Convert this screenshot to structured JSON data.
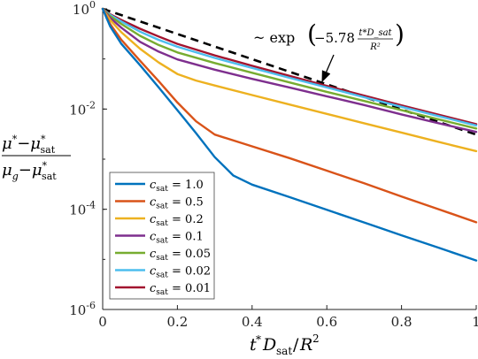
{
  "chart_data": {
    "type": "line",
    "title": "",
    "xlabel": "t*D_sat / R^2",
    "ylabel": "(μ* − μ*_sat) / (μ_g − μ*_sat)",
    "xlim": [
      0,
      1
    ],
    "ylim": [
      1e-06,
      1
    ],
    "y_scale": "log",
    "x_ticks": [
      "0",
      "0.2",
      "0.4",
      "0.6",
      "0.8",
      "1"
    ],
    "x_tick_values": [
      0,
      0.2,
      0.4,
      0.6,
      0.8,
      1
    ],
    "y_ticks": [
      {
        "value": 1,
        "base": "10",
        "exp": "0"
      },
      {
        "value": 0.01,
        "base": "10",
        "exp": "-2"
      },
      {
        "value": 0.0001,
        "base": "10",
        "exp": "-4"
      },
      {
        "value": 1e-06,
        "base": "10",
        "exp": "-6"
      }
    ],
    "grid": false,
    "legend_position": "bottom-left",
    "series": [
      {
        "name": "c_sat = 1.0",
        "legend_text": "= 1.0",
        "color": "#0072BD",
        "x": [
          0,
          0.02,
          0.05,
          0.1,
          0.15,
          0.2,
          0.25,
          0.3,
          0.35,
          0.4,
          0.5,
          0.6,
          0.7,
          0.8,
          0.9,
          1.0
        ],
        "y": [
          1,
          0.45,
          0.2,
          0.075,
          0.027,
          0.0095,
          0.0033,
          0.0011,
          0.00047,
          0.00031,
          0.000175,
          9.75e-05,
          5.45e-05,
          3.03e-05,
          1.7e-05,
          9.5e-06
        ]
      },
      {
        "name": "c_sat = 0.5",
        "legend_text": "= 0.5",
        "color": "#D95319",
        "x": [
          0,
          0.02,
          0.05,
          0.1,
          0.15,
          0.2,
          0.25,
          0.3,
          0.4,
          0.5,
          0.6,
          0.7,
          0.8,
          0.9,
          1.0
        ],
        "y": [
          1,
          0.5,
          0.24,
          0.092,
          0.036,
          0.0135,
          0.0057,
          0.0031,
          0.0018,
          0.00105,
          0.00059,
          0.00033,
          0.00018,
          0.0001,
          5.5e-05
        ]
      },
      {
        "name": "c_sat = 0.2",
        "legend_text": "= 0.2",
        "color": "#EDB120",
        "x": [
          0,
          0.02,
          0.05,
          0.1,
          0.15,
          0.2,
          0.25,
          0.3,
          0.4,
          0.5,
          0.6,
          0.7,
          0.8,
          0.9,
          1.0
        ],
        "y": [
          1,
          0.6,
          0.34,
          0.16,
          0.085,
          0.05,
          0.037,
          0.0295,
          0.019,
          0.0123,
          0.008,
          0.0052,
          0.0034,
          0.0022,
          0.00145
        ]
      },
      {
        "name": "c_sat = 0.1",
        "legend_text": "= 0.1",
        "color": "#7E2F8E",
        "x": [
          0,
          0.02,
          0.05,
          0.1,
          0.15,
          0.2,
          0.3,
          0.4,
          0.5,
          0.6,
          0.7,
          0.8,
          0.9,
          1.0
        ],
        "y": [
          1,
          0.66,
          0.42,
          0.22,
          0.14,
          0.098,
          0.061,
          0.04,
          0.027,
          0.018,
          0.012,
          0.0078,
          0.0052,
          0.0035
        ]
      },
      {
        "name": "c_sat = 0.05",
        "legend_text": "= 0.05",
        "color": "#77AC30",
        "x": [
          0,
          0.02,
          0.05,
          0.1,
          0.15,
          0.2,
          0.3,
          0.4,
          0.5,
          0.6,
          0.7,
          0.8,
          0.9,
          1.0
        ],
        "y": [
          1,
          0.72,
          0.5,
          0.29,
          0.19,
          0.135,
          0.083,
          0.053,
          0.034,
          0.022,
          0.0145,
          0.0095,
          0.0062,
          0.0041
        ]
      },
      {
        "name": "c_sat = 0.02",
        "legend_text": "= 0.02",
        "color": "#4DBEEE",
        "x": [
          0,
          0.02,
          0.05,
          0.1,
          0.15,
          0.2,
          0.3,
          0.4,
          0.5,
          0.6,
          0.7,
          0.8,
          0.9,
          1.0
        ],
        "y": [
          1,
          0.76,
          0.56,
          0.35,
          0.24,
          0.175,
          0.105,
          0.066,
          0.042,
          0.027,
          0.0172,
          0.0111,
          0.0072,
          0.0047
        ]
      },
      {
        "name": "c_sat = 0.01",
        "legend_text": "= 0.01",
        "color": "#A2142F",
        "x": [
          0,
          0.02,
          0.05,
          0.1,
          0.15,
          0.2,
          0.3,
          0.4,
          0.5,
          0.6,
          0.7,
          0.8,
          0.9,
          1.0
        ],
        "y": [
          1,
          0.78,
          0.6,
          0.4,
          0.28,
          0.2,
          0.118,
          0.073,
          0.046,
          0.029,
          0.0185,
          0.0119,
          0.0077,
          0.005
        ]
      }
    ],
    "reference_line": {
      "style": "dashed",
      "color": "#000000",
      "rate": -5.78,
      "x": [
        0,
        1
      ],
      "y": [
        1,
        0.00309
      ]
    },
    "annotation": {
      "prefix": "~ exp",
      "coefficient": "−5.78",
      "numerator": "t*D_sat",
      "denominator": "R²",
      "arrow_target": {
        "x": 0.44,
        "y": 0.11
      }
    }
  }
}
